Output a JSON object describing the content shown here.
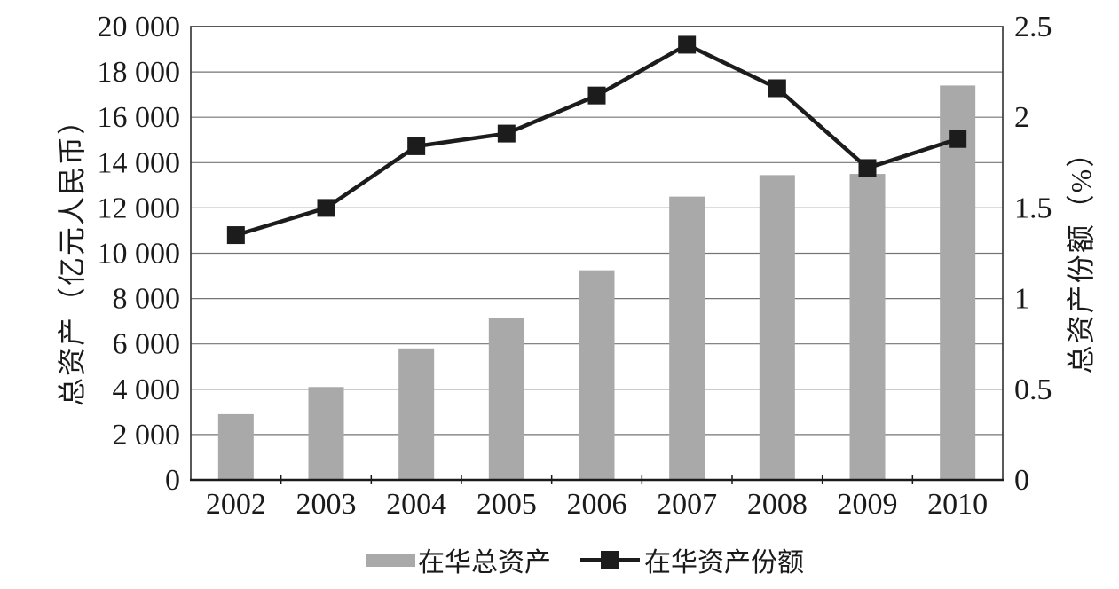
{
  "chart_data": {
    "type": "bar",
    "subtype": "combo-bar-line-dual-axis",
    "categories": [
      "2002",
      "2003",
      "2004",
      "2005",
      "2006",
      "2007",
      "2008",
      "2009",
      "2010"
    ],
    "series": [
      {
        "name": "在华总资产",
        "type": "bar",
        "axis": "left",
        "values": [
          2900,
          4100,
          5800,
          7150,
          9250,
          12500,
          13450,
          13500,
          17400
        ]
      },
      {
        "name": "在华资产份额",
        "type": "line",
        "axis": "right",
        "marker": "square",
        "values": [
          1.35,
          1.5,
          1.84,
          1.91,
          2.12,
          2.4,
          2.16,
          1.72,
          1.88
        ]
      }
    ],
    "left_axis": {
      "title": "总资产（亿元人民币）",
      "min": 0,
      "max": 20000,
      "tick_step": 2000,
      "tick_labels": [
        "0",
        "2 000",
        "4 000",
        "6 000",
        "8 000",
        "10 000",
        "12 000",
        "14 000",
        "16 000",
        "18 000",
        "20 000"
      ]
    },
    "right_axis": {
      "title": "总资产份额（%）",
      "min": 0,
      "max": 2.5,
      "tick_step": 0.5,
      "tick_labels": [
        "0",
        "0.5",
        "1",
        "1.5",
        "2",
        "2.5"
      ]
    },
    "x_axis": {
      "tick_labels": [
        "2002",
        "2003",
        "2004",
        "2005",
        "2006",
        "2007",
        "2008",
        "2009",
        "2010"
      ]
    },
    "legend": {
      "position": "bottom",
      "bar_label": "在华总资产",
      "line_label": "在华资产份额"
    },
    "grid": true,
    "colors": {
      "bar": "#a9a9a9",
      "line": "#1c1c1c",
      "marker": "#1c1c1c",
      "gridline": "#757575",
      "border": "#3c3c3c",
      "axis": "#1a1a1a",
      "text": "#1a1a1a"
    }
  }
}
